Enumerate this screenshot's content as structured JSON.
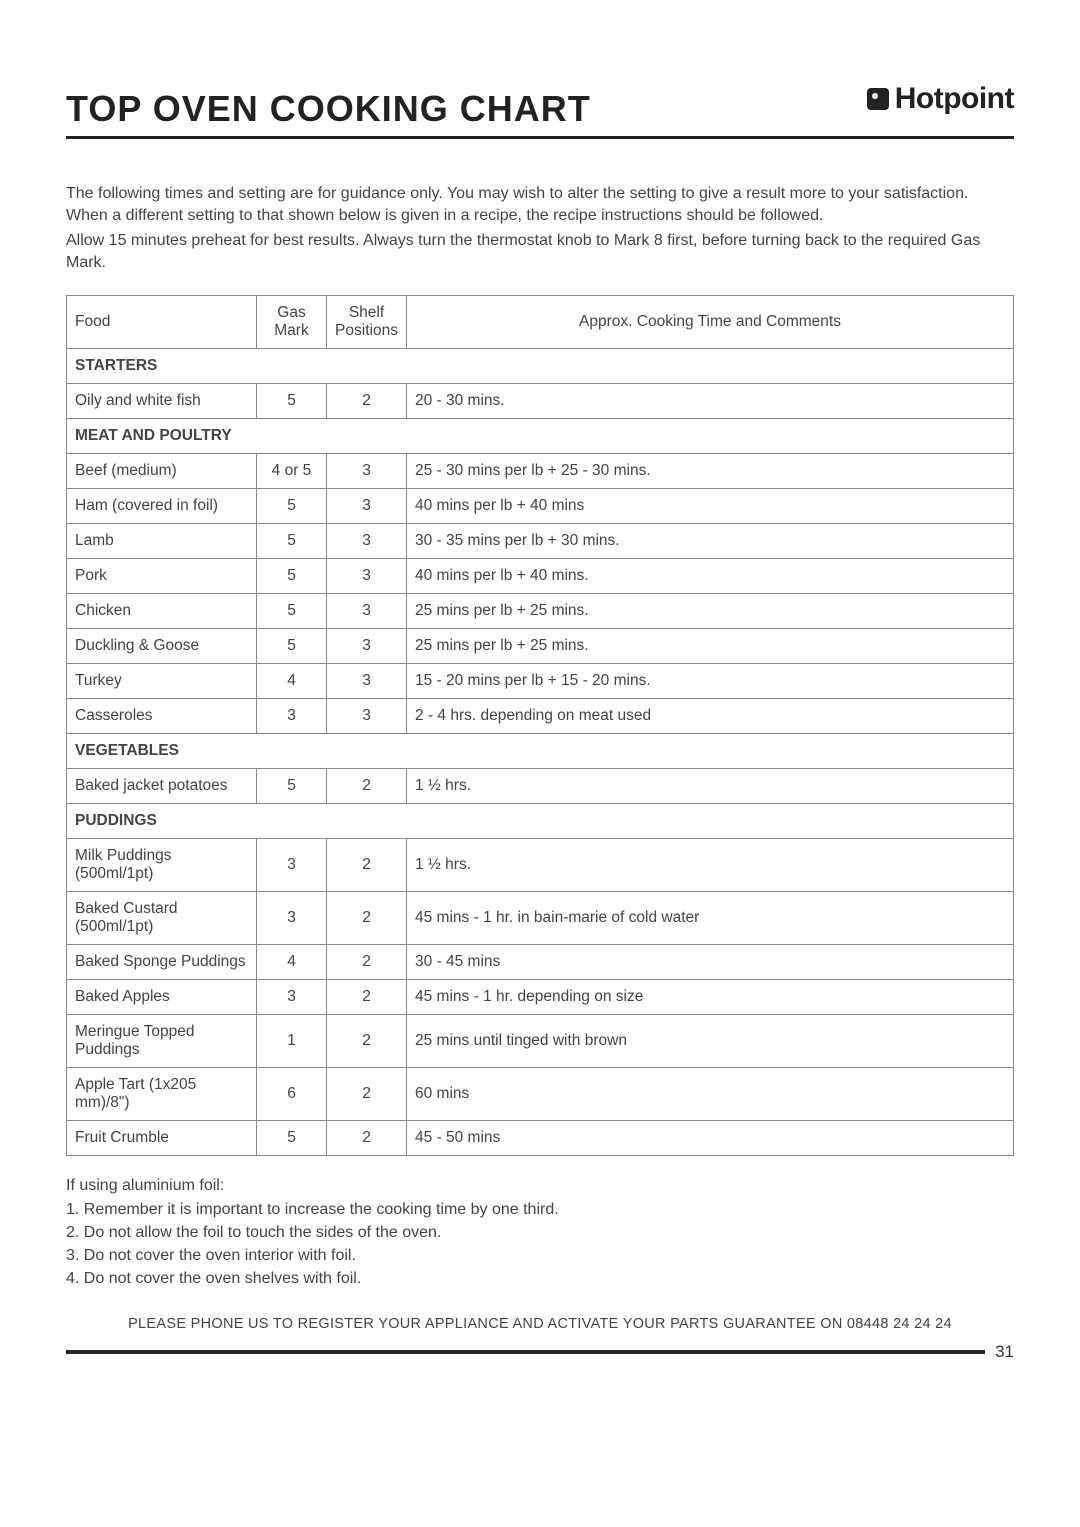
{
  "brand": "Hotpoint",
  "title": "TOP OVEN COOKING CHART",
  "intro": {
    "p1": "The following times and setting are for guidance only. You may wish to alter the setting to give a result more to your satisfaction. When a different setting to that shown below is given in a recipe, the recipe instructions should be followed.",
    "p2": "Allow 15 minutes preheat for best results. Always turn the thermostat knob to Mark 8 first, before turning back to the required Gas Mark."
  },
  "table": {
    "headers": {
      "food": "Food",
      "gas": "Gas Mark",
      "shelf": "Shelf Positions",
      "comment": "Approx. Cooking Time and Comments"
    },
    "groups": [
      {
        "section": "Starters",
        "rows": [
          {
            "food": "Oily and white fish",
            "gas": "5",
            "shelf": "2",
            "comment": "20 - 30 mins."
          }
        ]
      },
      {
        "section": "Meat and Poultry",
        "rows": [
          {
            "food": "Beef (medium)",
            "gas": "4 or 5",
            "shelf": "3",
            "comment": "25 - 30 mins per lb + 25 - 30 mins."
          },
          {
            "food": "Ham (covered in foil)",
            "gas": "5",
            "shelf": "3",
            "comment": "40 mins per lb + 40 mins"
          },
          {
            "food": "Lamb",
            "gas": "5",
            "shelf": "3",
            "comment": "30 - 35 mins per lb + 30 mins."
          },
          {
            "food": "Pork",
            "gas": "5",
            "shelf": "3",
            "comment": "40 mins per lb + 40 mins."
          },
          {
            "food": "Chicken",
            "gas": "5",
            "shelf": "3",
            "comment": "25 mins per lb + 25 mins."
          },
          {
            "food": "Duckling & Goose",
            "gas": "5",
            "shelf": "3",
            "comment": "25 mins per lb + 25 mins."
          },
          {
            "food": "Turkey",
            "gas": "4",
            "shelf": "3",
            "comment": "15 - 20 mins per lb + 15 - 20 mins."
          },
          {
            "food": "Casseroles",
            "gas": "3",
            "shelf": "3",
            "comment": "2 - 4 hrs. depending on meat used"
          }
        ]
      },
      {
        "section": "Vegetables",
        "rows": [
          {
            "food": "Baked jacket potatoes",
            "gas": "5",
            "shelf": "2",
            "comment": "1 ½ hrs."
          }
        ]
      },
      {
        "section": "Puddings",
        "rows": [
          {
            "food": "Milk Puddings (500ml/1pt)",
            "gas": "3",
            "shelf": "2",
            "comment": "1 ½ hrs."
          },
          {
            "food": "Baked Custard (500ml/1pt)",
            "gas": "3",
            "shelf": "2",
            "comment": "45 mins - 1 hr. in bain-marie of cold water"
          },
          {
            "food": "Baked Sponge Puddings",
            "gas": "4",
            "shelf": "2",
            "comment": "30 - 45 mins"
          },
          {
            "food": "Baked Apples",
            "gas": "3",
            "shelf": "2",
            "comment": "45 mins - 1 hr. depending on size"
          },
          {
            "food": "Meringue Topped Puddings",
            "gas": "1",
            "shelf": "2",
            "comment": "25 mins until tinged with brown"
          },
          {
            "food": "Apple Tart (1x205 mm)/8\")",
            "gas": "6",
            "shelf": "2",
            "comment": "60 mins"
          },
          {
            "food": "Fruit Crumble",
            "gas": "5",
            "shelf": "2",
            "comment": "45 - 50 mins"
          }
        ]
      }
    ]
  },
  "notes": {
    "lead": "If using aluminium foil:",
    "n1": "1.  Remember it is important to increase the cooking time by one third.",
    "n2": "2.  Do not allow the foil to touch the sides of the oven.",
    "n3": "3.  Do not cover the oven interior with foil.",
    "n4": "4.  Do not cover the oven shelves with foil."
  },
  "register_line": "PLEASE PHONE US TO REGISTER YOUR APPLIANCE  AND ACTIVATE YOUR PARTS GUARANTEE ON 08448 24 24 24",
  "page_number": "31"
}
